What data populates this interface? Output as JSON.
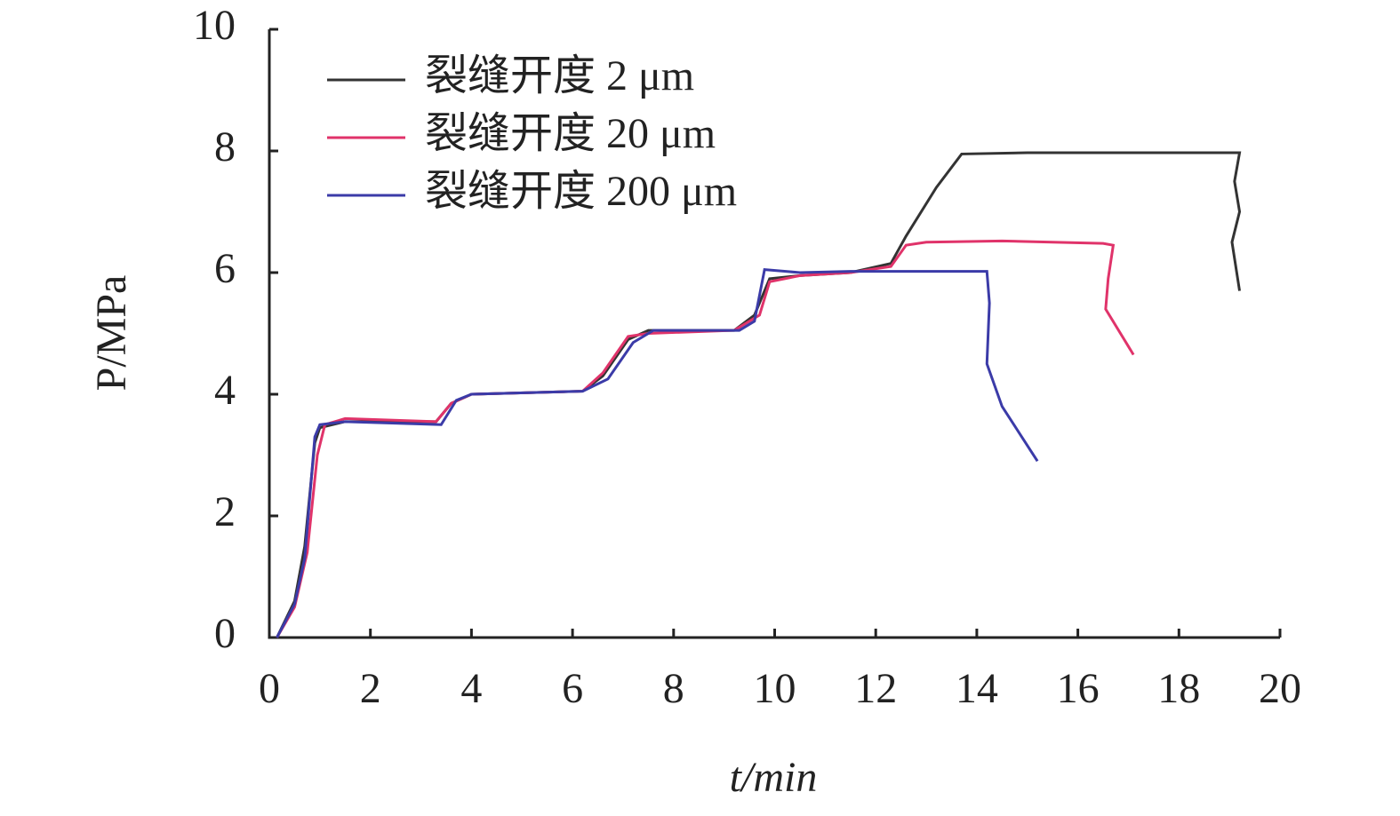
{
  "chart_data": {
    "type": "line",
    "xlabel": "t/min",
    "ylabel": "P/MPa",
    "xlim": [
      0,
      20
    ],
    "xticks": [
      0,
      2,
      4,
      6,
      8,
      10,
      12,
      14,
      16,
      18,
      20
    ],
    "ylim": [
      0,
      10
    ],
    "yticks": [
      0,
      2,
      4,
      6,
      8,
      10
    ],
    "legend": "upper left",
    "series": [
      {
        "name": "裂缝开度 2 μm",
        "color": "#333333",
        "x": [
          0.15,
          0.5,
          0.7,
          0.9,
          1.0,
          1.5,
          3.3,
          3.6,
          4.0,
          6.2,
          6.6,
          7.1,
          7.5,
          9.2,
          9.6,
          9.9,
          10.5,
          11.5,
          12.3,
          12.6,
          13.2,
          13.7,
          15.0,
          19.2,
          19.1,
          19.2,
          19.05,
          19.2
        ],
        "values": [
          0,
          0.6,
          1.5,
          3.2,
          3.45,
          3.55,
          3.55,
          3.85,
          4.0,
          4.05,
          4.3,
          4.9,
          5.05,
          5.05,
          5.3,
          5.9,
          5.95,
          6.0,
          6.15,
          6.6,
          7.4,
          7.95,
          7.97,
          7.97,
          7.5,
          7.0,
          6.5,
          5.7
        ]
      },
      {
        "name": "裂缝开度 20 μm",
        "color": "#e0336a",
        "x": [
          0.15,
          0.5,
          0.75,
          0.95,
          1.1,
          1.5,
          3.3,
          3.6,
          4.0,
          6.2,
          6.6,
          7.1,
          7.5,
          9.2,
          9.7,
          9.9,
          10.5,
          11.5,
          12.3,
          12.6,
          13.0,
          14.5,
          16.5,
          16.7,
          16.6,
          16.55,
          17.1
        ],
        "values": [
          0,
          0.5,
          1.4,
          3.0,
          3.5,
          3.6,
          3.55,
          3.85,
          4.0,
          4.05,
          4.35,
          4.95,
          5.0,
          5.05,
          5.3,
          5.85,
          5.95,
          6.0,
          6.1,
          6.45,
          6.5,
          6.52,
          6.48,
          6.45,
          5.9,
          5.4,
          4.65
        ]
      },
      {
        "name": "裂缝开度 200 μm",
        "color": "#3b3ba8",
        "x": [
          0.15,
          0.5,
          0.7,
          0.9,
          1.0,
          1.5,
          3.4,
          3.7,
          4.0,
          6.2,
          6.7,
          7.2,
          7.6,
          9.3,
          9.6,
          9.8,
          10.5,
          11.5,
          14.2,
          14.25,
          14.2,
          14.5,
          15.2
        ],
        "values": [
          0,
          0.55,
          1.3,
          3.3,
          3.5,
          3.55,
          3.5,
          3.9,
          4.0,
          4.05,
          4.25,
          4.85,
          5.05,
          5.05,
          5.2,
          6.05,
          6.0,
          6.02,
          6.02,
          5.5,
          4.5,
          3.8,
          2.9
        ]
      }
    ]
  }
}
